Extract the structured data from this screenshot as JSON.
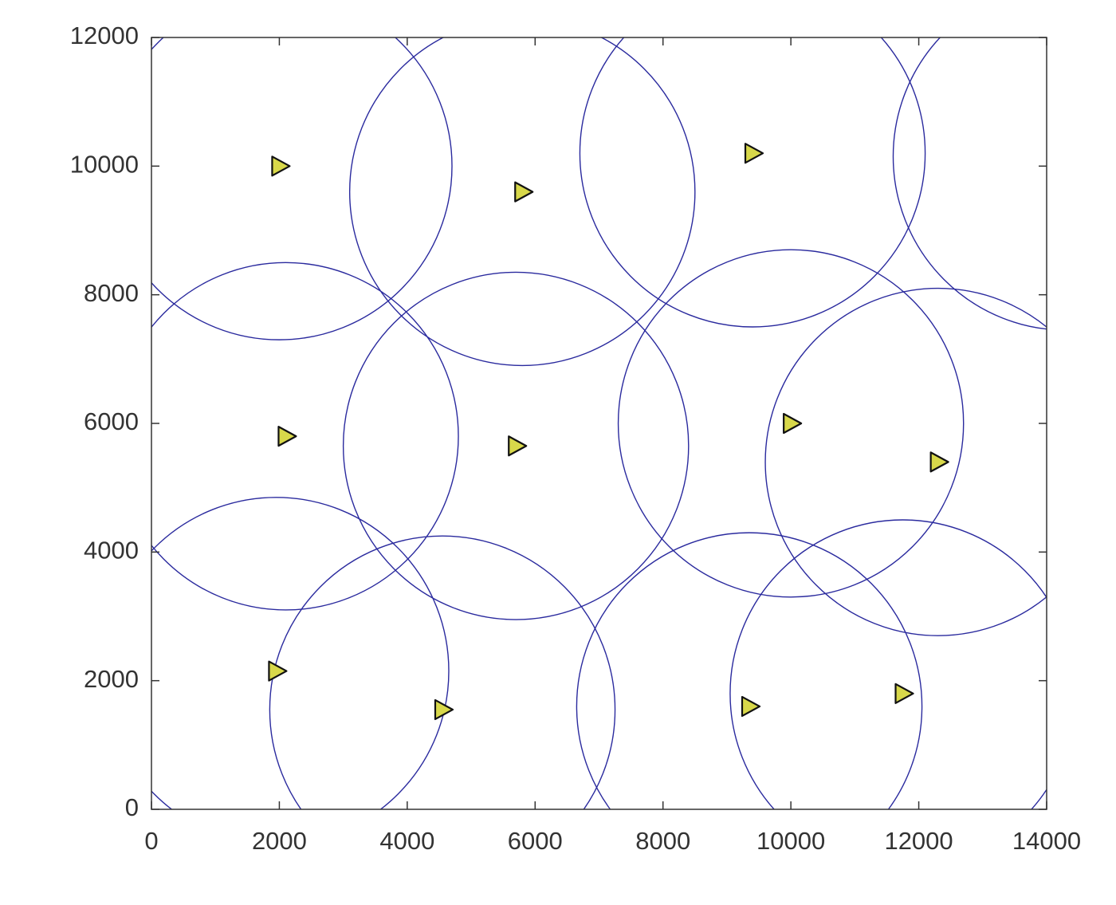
{
  "chart_data": {
    "type": "scatter",
    "series": [
      {
        "color": "#d8d84a",
        "x": [
          2000,
          5800,
          9400,
          2100,
          5700,
          10000,
          12300,
          1950,
          4550,
          9350,
          11750
        ],
        "y": [
          10000,
          9600,
          10200,
          5800,
          5650,
          6000,
          5400,
          2150,
          1550,
          1600,
          1800
        ]
      }
    ],
    "circles": {
      "color": "#2a2a9e",
      "x": [
        2000,
        5800,
        9400,
        2100,
        5700,
        10000,
        12300,
        1950,
        4550,
        9350,
        11750,
        14300
      ],
      "y": [
        10000,
        9600,
        10200,
        5800,
        5650,
        6000,
        5400,
        2150,
        1550,
        1600,
        1800,
        10150
      ],
      "r": [
        2700,
        2700,
        2700,
        2700,
        2700,
        2700,
        2700,
        2700,
        2700,
        2700,
        2700,
        2700
      ]
    },
    "xlim": [
      0,
      14000
    ],
    "ylim": [
      0,
      12000
    ],
    "xticks": [
      0,
      2000,
      4000,
      6000,
      8000,
      10000,
      12000,
      14000
    ],
    "yticks": [
      0,
      2000,
      4000,
      6000,
      8000,
      10000,
      12000
    ]
  }
}
